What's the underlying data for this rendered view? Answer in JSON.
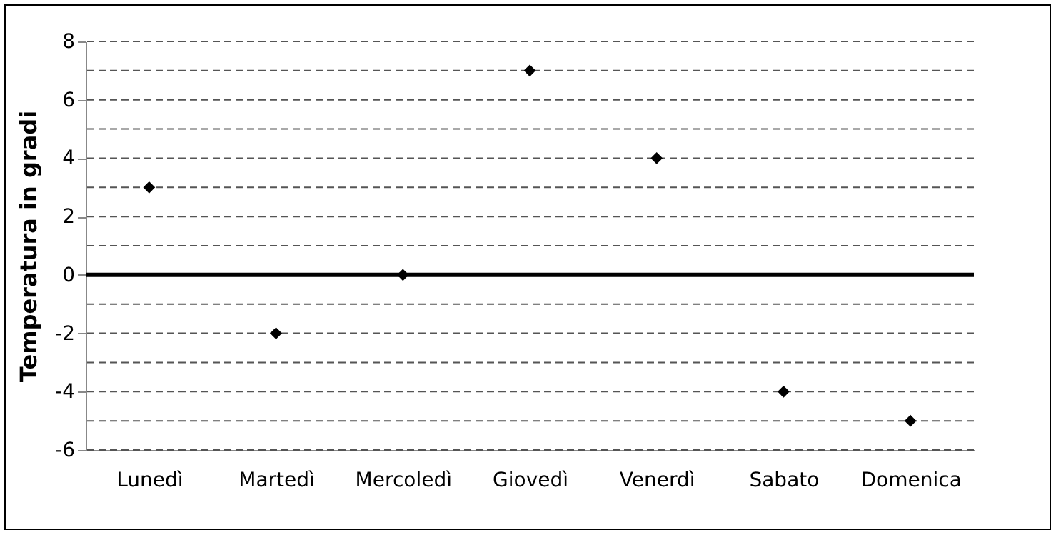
{
  "chart_data": {
    "type": "scatter",
    "ylabel": "Temperatura in gradi",
    "categories": [
      "Lunedì",
      "Martedì",
      "Mercoledì",
      "Giovedì",
      "Venerdì",
      "Sabato",
      "Domenica"
    ],
    "values": [
      3,
      -2,
      0,
      7,
      4,
      -4,
      -5
    ],
    "color": "#000000",
    "marker": "diamond",
    "ylim": [
      -6,
      8
    ],
    "yticks": [
      -6,
      {
        "value": -5,
        "label": null
      },
      -4,
      {
        "value": -3,
        "label": null
      },
      -2,
      {
        "value": -1,
        "label": null
      },
      0,
      {
        "value": 1,
        "label": null
      },
      2,
      {
        "value": 3,
        "label": null
      },
      4,
      {
        "value": 5,
        "label": null
      },
      6,
      {
        "value": 7,
        "label": null
      },
      8
    ],
    "grid": "y",
    "ref_lines": [
      {
        "axis": "y",
        "value": 0,
        "label": null,
        "color": "#000000"
      }
    ]
  }
}
